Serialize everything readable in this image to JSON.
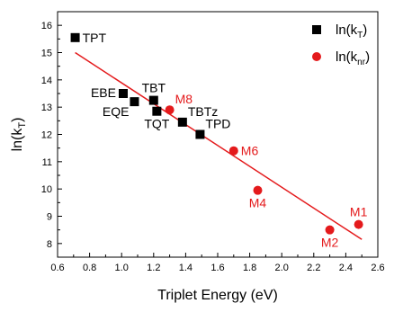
{
  "chart_data": {
    "type": "scatter",
    "xlabel": "Triplet Energy (eV)",
    "ylabel": "ln(k_T)",
    "xlim": [
      0.6,
      2.6
    ],
    "ylim": [
      7.5,
      16.5
    ],
    "xticks": [
      "0.6",
      "0.8",
      "1.0",
      "1.2",
      "1.4",
      "1.6",
      "1.8",
      "2.0",
      "2.2",
      "2.4",
      "2.6"
    ],
    "yticks": [
      "8",
      "9",
      "10",
      "11",
      "12",
      "13",
      "14",
      "15",
      "16"
    ],
    "legend": {
      "position": "top-right",
      "entries": [
        {
          "main": "ln(k",
          "sub": "T",
          "close": ")",
          "marker": "square",
          "color": "#000000"
        },
        {
          "main": "ln(k",
          "sub": "nr",
          "close": ")",
          "marker": "circle",
          "color": "#e41a1c"
        }
      ]
    },
    "series": [
      {
        "name": "ln(kT)",
        "marker": "square",
        "color": "#000000",
        "points": [
          {
            "label": "TPT",
            "x": 0.71,
            "y": 15.55,
            "label_side": "right"
          },
          {
            "label": "EBE",
            "x": 1.01,
            "y": 13.5,
            "label_side": "left"
          },
          {
            "label": "EQE",
            "x": 1.08,
            "y": 13.2,
            "label_side": "below-left"
          },
          {
            "label": "TBT",
            "x": 1.2,
            "y": 13.25,
            "label_side": "above"
          },
          {
            "label": "TQT",
            "x": 1.22,
            "y": 12.85,
            "label_side": "below"
          },
          {
            "label": "TBTz",
            "x": 1.38,
            "y": 12.45,
            "label_side": "above-right"
          },
          {
            "label": "TPD",
            "x": 1.49,
            "y": 12.0,
            "label_side": "above-right"
          }
        ]
      },
      {
        "name": "ln(knr)",
        "marker": "circle",
        "color": "#e41a1c",
        "points": [
          {
            "label": "M8",
            "x": 1.3,
            "y": 12.9,
            "label_side": "above-right"
          },
          {
            "label": "M6",
            "x": 1.7,
            "y": 11.4,
            "label_side": "right"
          },
          {
            "label": "M4",
            "x": 1.85,
            "y": 9.95,
            "label_side": "below"
          },
          {
            "label": "M2",
            "x": 2.3,
            "y": 8.5,
            "label_side": "below"
          },
          {
            "label": "M1",
            "x": 2.48,
            "y": 8.7,
            "label_side": "above"
          }
        ]
      }
    ],
    "fit_line": {
      "color": "#e41a1c",
      "x": [
        0.71,
        2.5
      ],
      "y": [
        15.0,
        8.15
      ]
    }
  }
}
